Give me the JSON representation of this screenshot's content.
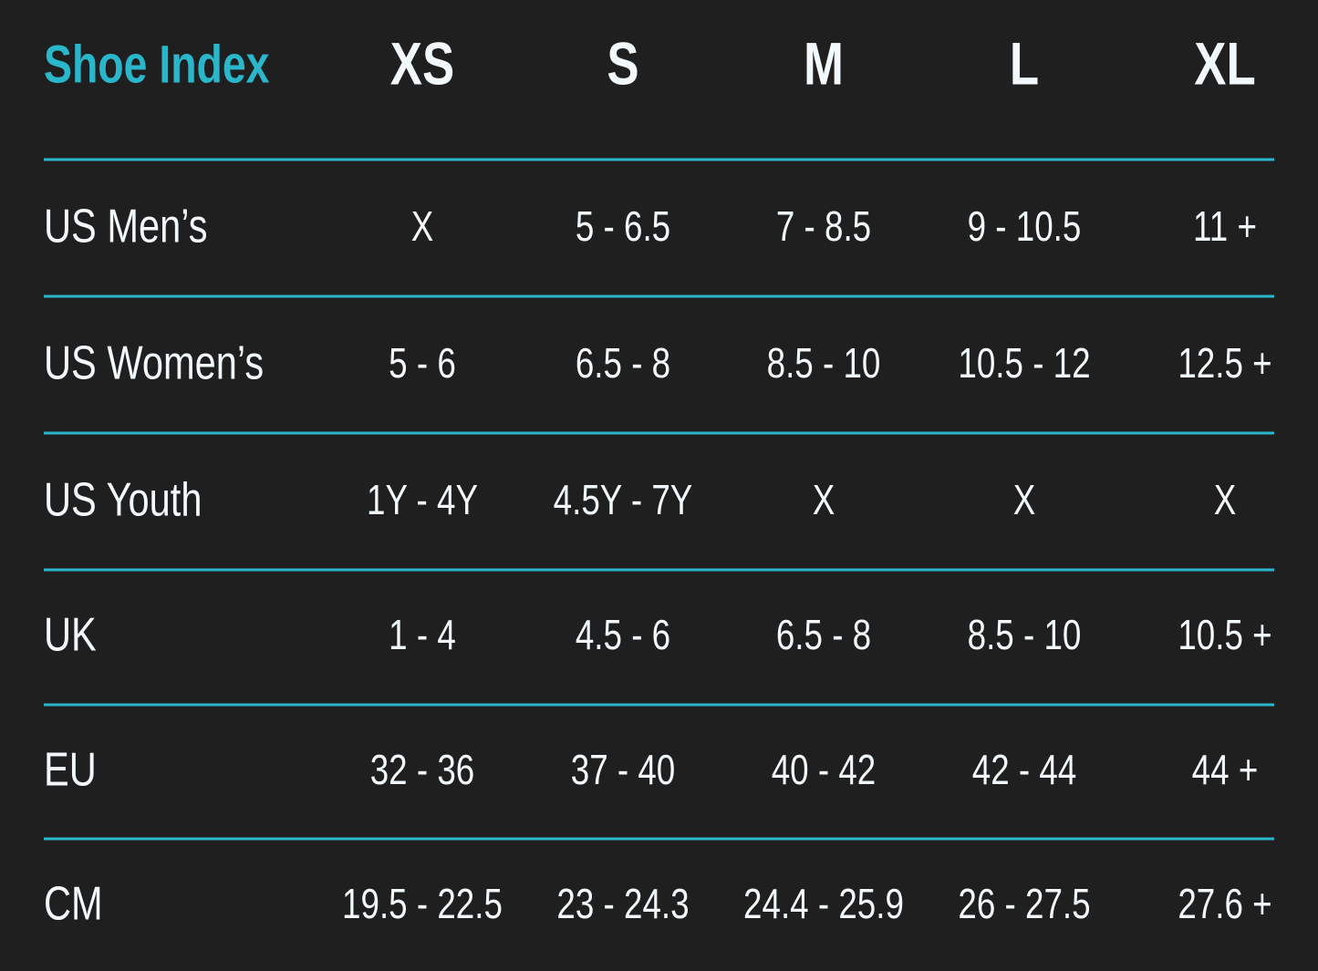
{
  "table": {
    "header": [
      "Shoe Index",
      "XS",
      "S",
      "M",
      "L",
      "XL"
    ],
    "rows": [
      [
        "US Men’s",
        "X",
        "5 - 6.5",
        "7 - 8.5",
        "9 - 10.5",
        "11 +"
      ],
      [
        "US Women’s",
        "5 - 6",
        "6.5 - 8",
        "8.5 - 10",
        "10.5 - 12",
        "12.5 +"
      ],
      [
        "US Youth",
        "1Y - 4Y",
        "4.5Y - 7Y",
        "X",
        "X",
        "X"
      ],
      [
        "UK",
        "1 - 4",
        "4.5 - 6",
        "6.5 - 8",
        "8.5 - 10",
        "10.5 +"
      ],
      [
        "EU",
        "32 - 36",
        "37 - 40",
        "40 - 42",
        "42 - 44",
        "44 +"
      ],
      [
        "CM",
        "19.5 - 22.5",
        "23 - 24.3",
        "24.4 - 25.9",
        "26 - 27.5",
        "27.6 +"
      ]
    ]
  }
}
